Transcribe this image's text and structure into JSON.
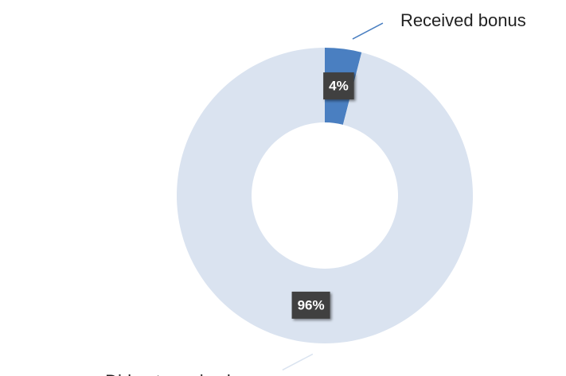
{
  "chart_data": {
    "type": "donut",
    "categories": [
      "Received bonus",
      "Did not receive bonus"
    ],
    "values": [
      4,
      96
    ],
    "value_labels": [
      "4%",
      "96%"
    ],
    "colors": [
      "#4a7fc1",
      "#dae3f0"
    ]
  }
}
